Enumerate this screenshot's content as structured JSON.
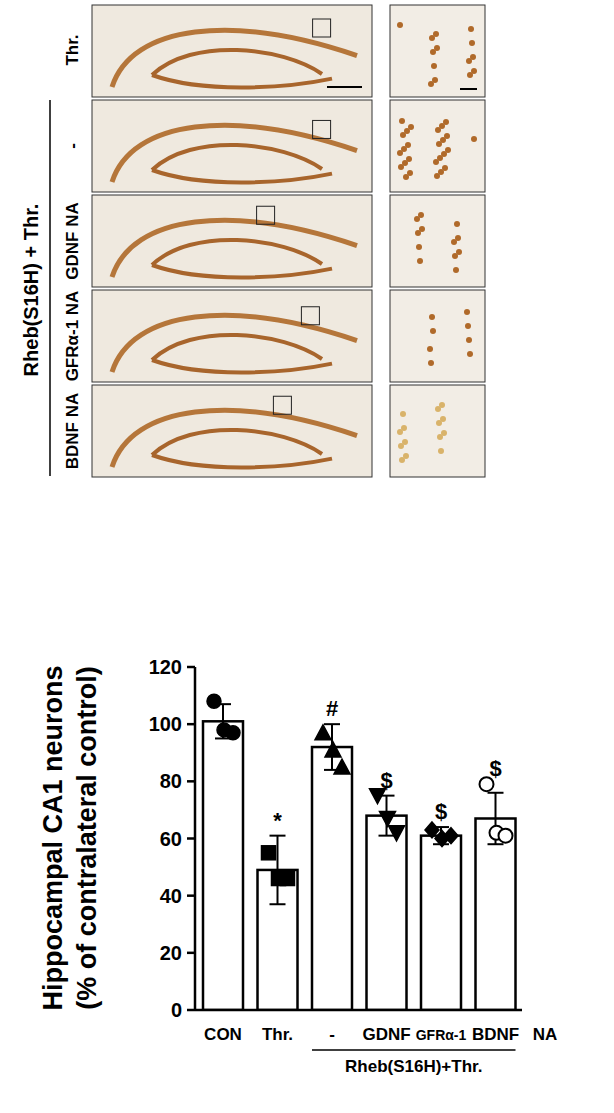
{
  "panels": {
    "top_label": "Thr.",
    "group_label": "Rheb(S16H) + Thr.",
    "row_labels": [
      "-",
      "GDNF NA",
      "GFRα-1 NA",
      "BDNF NA"
    ]
  },
  "chart_data": {
    "type": "bar",
    "ylabel": [
      "Hippocampal CA1 neurons",
      "(% of contralateral control)"
    ],
    "categories": [
      "CON",
      "Thr.",
      "-",
      "GDNF",
      "GFRα-1",
      "BDNF"
    ],
    "values": [
      101,
      49,
      92,
      68,
      61,
      67
    ],
    "errors": [
      6,
      12,
      8,
      7,
      3,
      9
    ],
    "points": [
      [
        108,
        98,
        97
      ],
      [
        55,
        46,
        46
      ],
      [
        97,
        91,
        85
      ],
      [
        75,
        67,
        62
      ],
      [
        63,
        60,
        61
      ],
      [
        79,
        62,
        61
      ]
    ],
    "markers": [
      "circle",
      "square",
      "triangle",
      "triangle-down",
      "diamond",
      "circle-open"
    ],
    "annotations": [
      null,
      "*",
      "#",
      "$",
      "$",
      "$"
    ],
    "groups": [
      {
        "label": "Rheb(S16H)+Thr.",
        "categories": [
          2,
          3,
          4,
          5
        ]
      }
    ],
    "x_suffix": "NA",
    "color": "#ffffff",
    "ylim": [
      0,
      120
    ],
    "yticks": [
      0,
      20,
      40,
      60,
      80,
      100,
      120
    ],
    "grid": false
  }
}
